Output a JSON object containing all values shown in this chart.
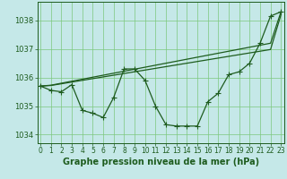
{
  "xlabel": "Graphe pression niveau de la mer (hPa)",
  "hours": [
    0,
    1,
    2,
    3,
    4,
    5,
    6,
    7,
    8,
    9,
    10,
    11,
    12,
    13,
    14,
    15,
    16,
    17,
    18,
    19,
    20,
    21,
    22,
    23
  ],
  "line1": [
    1035.7,
    1035.55,
    1035.5,
    1035.75,
    1034.85,
    1034.75,
    1034.6,
    1035.3,
    1036.3,
    1036.3,
    1035.9,
    1035.0,
    1034.35,
    1034.3,
    1034.3,
    1034.3,
    1035.15,
    1035.45,
    1036.1,
    1036.2,
    1036.5,
    1037.2,
    1038.15,
    1038.3
  ],
  "line2": [
    1035.7,
    1035.72,
    1035.78,
    1035.84,
    1035.9,
    1035.96,
    1036.02,
    1036.08,
    1036.14,
    1036.2,
    1036.26,
    1036.32,
    1036.38,
    1036.44,
    1036.5,
    1036.56,
    1036.62,
    1036.68,
    1036.74,
    1036.8,
    1036.86,
    1036.92,
    1036.98,
    1038.2
  ],
  "line3": [
    1035.7,
    1035.73,
    1035.8,
    1035.87,
    1035.94,
    1036.01,
    1036.08,
    1036.15,
    1036.22,
    1036.29,
    1036.36,
    1036.43,
    1036.5,
    1036.57,
    1036.64,
    1036.71,
    1036.78,
    1036.85,
    1036.92,
    1036.99,
    1037.06,
    1037.13,
    1037.2,
    1038.3
  ],
  "ylim": [
    1033.7,
    1038.65
  ],
  "yticks": [
    1034,
    1035,
    1036,
    1037,
    1038
  ],
  "bg_color": "#c5e8e8",
  "grid_color": "#7dc87d",
  "line_color": "#1e5c1e",
  "markersize": 4,
  "linewidth": 0.9,
  "xlabel_fontsize": 7,
  "tick_fontsize": 5.5
}
